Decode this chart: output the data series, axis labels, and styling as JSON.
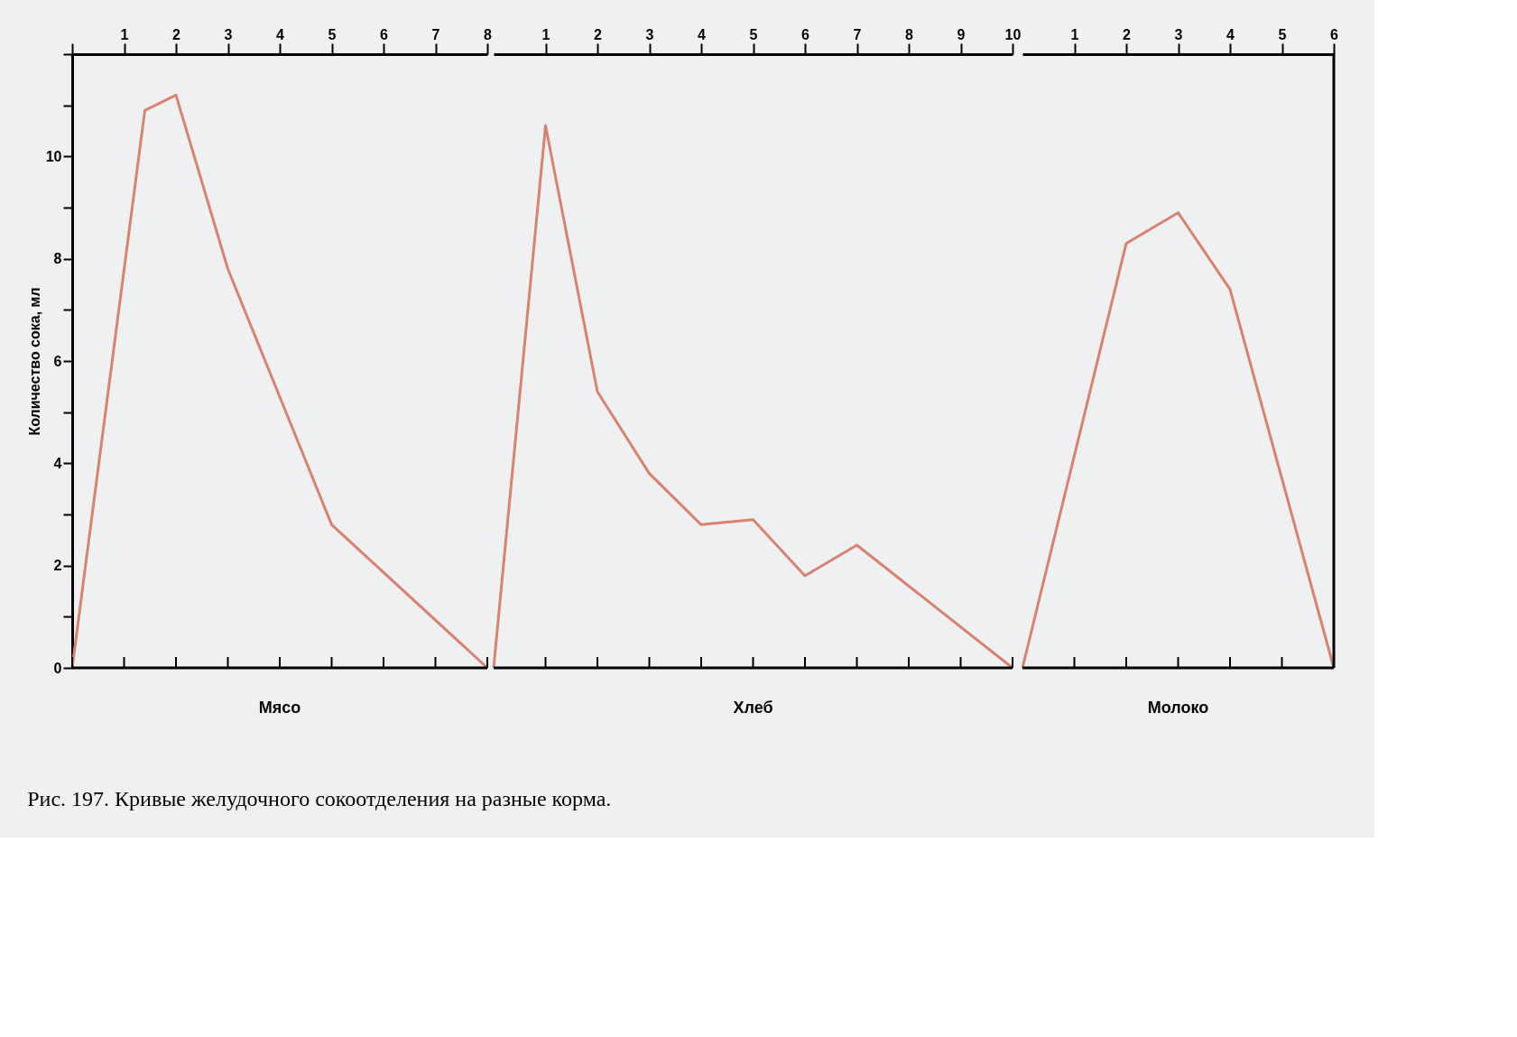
{
  "chart_data": [
    {
      "type": "line",
      "ylabel": "Количество сока, мл",
      "xlabel": "Мясо",
      "x": [
        0,
        1.4,
        2,
        3,
        5,
        8
      ],
      "series": [
        {
          "color": "#d9826f",
          "values": [
            0,
            10.9,
            11.2,
            7.8,
            2.8,
            0
          ]
        }
      ],
      "xlim": [
        0,
        8
      ],
      "xticks": [
        {
          "value": 0,
          "label": null
        },
        1,
        2,
        3,
        4,
        5,
        6,
        7,
        8
      ],
      "ylim": [
        0,
        12
      ],
      "yticks": [
        0,
        {
          "value": 1,
          "label": null
        },
        2,
        {
          "value": 3,
          "label": null
        },
        4,
        {
          "value": 5,
          "label": null
        },
        6,
        {
          "value": 7,
          "label": null
        },
        8,
        {
          "value": 9,
          "label": null
        },
        10,
        {
          "value": 11,
          "label": null
        },
        {
          "value": 12,
          "label": null
        }
      ],
      "grid": false,
      "annotations": [
        "Рис. 197. Кривые желудочного сокоотделения на разные корма."
      ]
    },
    {
      "type": "line",
      "xlabel": "Хлеб",
      "x": [
        0,
        1,
        2,
        3,
        4,
        5,
        6,
        7,
        10
      ],
      "series": [
        {
          "color": "#d9826f",
          "values": [
            0,
            10.6,
            5.4,
            3.8,
            2.8,
            2.9,
            1.8,
            2.4,
            0
          ]
        }
      ],
      "xlim": [
        0,
        10
      ],
      "xticks": [
        1,
        2,
        3,
        4,
        5,
        6,
        7,
        8,
        9,
        10
      ],
      "ylim": [
        0,
        12
      ],
      "tick_labels": "x",
      "grid": false
    },
    {
      "type": "line",
      "xlabel": "Молоко",
      "x": [
        0,
        2,
        3,
        4,
        6
      ],
      "series": [
        {
          "color": "#d9826f",
          "values": [
            0,
            8.3,
            8.9,
            7.4,
            0
          ]
        }
      ],
      "xlim": [
        0,
        6
      ],
      "xticks": [
        1,
        2,
        3,
        4,
        5,
        6
      ],
      "ylim": [
        0,
        12
      ],
      "tick_labels": "x",
      "grid": false
    }
  ]
}
